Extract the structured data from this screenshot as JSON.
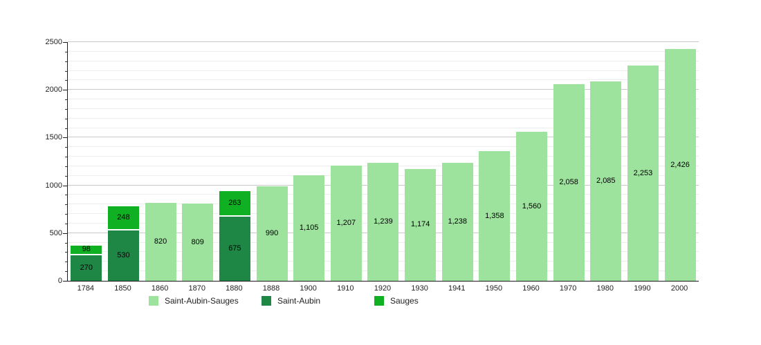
{
  "chart_data": {
    "type": "bar",
    "stacked": true,
    "title": "",
    "x": [
      "1784",
      "1850",
      "1860",
      "1870",
      "1880",
      "1888",
      "1900",
      "1910",
      "1920",
      "1930",
      "1941",
      "1950",
      "1960",
      "1970",
      "1980",
      "1990",
      "2000"
    ],
    "bars": [
      {
        "year": "1784",
        "segments": [
          {
            "series": "Saint-Aubin",
            "value": 270,
            "label": "270"
          },
          {
            "series": "Sauges",
            "value": 98,
            "label": "98"
          }
        ]
      },
      {
        "year": "1850",
        "segments": [
          {
            "series": "Saint-Aubin",
            "value": 530,
            "label": "530"
          },
          {
            "series": "Sauges",
            "value": 248,
            "label": "248"
          }
        ]
      },
      {
        "year": "1860",
        "segments": [
          {
            "series": "Saint-Aubin-Sauges",
            "value": 820,
            "label": "820"
          }
        ]
      },
      {
        "year": "1870",
        "segments": [
          {
            "series": "Saint-Aubin-Sauges",
            "value": 809,
            "label": "809"
          }
        ]
      },
      {
        "year": "1880",
        "segments": [
          {
            "series": "Saint-Aubin",
            "value": 675,
            "label": "675"
          },
          {
            "series": "Sauges",
            "value": 263,
            "label": "263"
          }
        ]
      },
      {
        "year": "1888",
        "segments": [
          {
            "series": "Saint-Aubin-Sauges",
            "value": 990,
            "label": "990"
          }
        ]
      },
      {
        "year": "1900",
        "segments": [
          {
            "series": "Saint-Aubin-Sauges",
            "value": 1105,
            "label": "1,105"
          }
        ]
      },
      {
        "year": "1910",
        "segments": [
          {
            "series": "Saint-Aubin-Sauges",
            "value": 1207,
            "label": "1,207"
          }
        ]
      },
      {
        "year": "1920",
        "segments": [
          {
            "series": "Saint-Aubin-Sauges",
            "value": 1239,
            "label": "1,239"
          }
        ]
      },
      {
        "year": "1930",
        "segments": [
          {
            "series": "Saint-Aubin-Sauges",
            "value": 1174,
            "label": "1,174"
          }
        ]
      },
      {
        "year": "1941",
        "segments": [
          {
            "series": "Saint-Aubin-Sauges",
            "value": 1238,
            "label": "1,238"
          }
        ]
      },
      {
        "year": "1950",
        "segments": [
          {
            "series": "Saint-Aubin-Sauges",
            "value": 1358,
            "label": "1,358"
          }
        ]
      },
      {
        "year": "1960",
        "segments": [
          {
            "series": "Saint-Aubin-Sauges",
            "value": 1560,
            "label": "1,560"
          }
        ]
      },
      {
        "year": "1970",
        "segments": [
          {
            "series": "Saint-Aubin-Sauges",
            "value": 2058,
            "label": "2,058"
          }
        ]
      },
      {
        "year": "1980",
        "segments": [
          {
            "series": "Saint-Aubin-Sauges",
            "value": 2085,
            "label": "2,085"
          }
        ]
      },
      {
        "year": "1990",
        "segments": [
          {
            "series": "Saint-Aubin-Sauges",
            "value": 2253,
            "label": "2,253"
          }
        ]
      },
      {
        "year": "2000",
        "segments": [
          {
            "series": "Saint-Aubin-Sauges",
            "value": 2426,
            "label": "2,426"
          }
        ]
      }
    ],
    "y_axis": {
      "min": 0,
      "max": 2500,
      "major_step": 500,
      "minor_step": 100,
      "tick_labels": [
        "0",
        "500",
        "1000",
        "1500",
        "2000",
        "2500"
      ]
    },
    "xlabel": "",
    "ylabel": "",
    "grid": true,
    "legend_position": "bottom",
    "series_colors": {
      "Saint-Aubin-Sauges": "#9de29d",
      "Saint-Aubin": "#1e8745",
      "Sauges": "#0fb123"
    },
    "legend": [
      {
        "series": "Saint-Aubin-Sauges",
        "label": "Saint-Aubin-Sauges",
        "color": "#9de29d"
      },
      {
        "series": "Saint-Aubin",
        "label": "Saint-Aubin",
        "color": "#1e8745"
      },
      {
        "series": "Sauges",
        "label": "Sauges",
        "color": "#0fb123"
      }
    ],
    "colors": {
      "grid_minor": "#ededed",
      "grid_major": "#c9c9c9",
      "axis": "#1a1a1a",
      "label_text": "#000000"
    }
  }
}
